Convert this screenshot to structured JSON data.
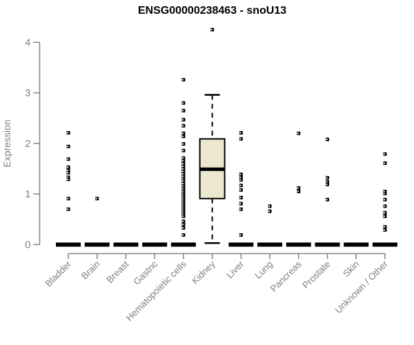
{
  "header": {
    "title": "ENSG00000238463 - snoU13"
  },
  "chart_data": {
    "type": "boxplot",
    "title": "ENSG00000238463 - snoU13",
    "xlabel": "",
    "ylabel": "Expression",
    "ylim": [
      0,
      4.3
    ],
    "yticks": [
      0,
      1,
      2,
      3,
      4
    ],
    "grid": false,
    "legend": "none",
    "colors": {
      "background": "#ffffff",
      "axis": "#808080",
      "tick_label": "#808080",
      "title": "#000000",
      "box_fill": "#ece8cf",
      "box_stroke": "#000000",
      "median": "#000000",
      "whisker": "#000000",
      "point": "#000000",
      "zero_bar": "#000000"
    },
    "categories": [
      "Bladder",
      "Brain",
      "Breast",
      "Gastric",
      "Hematopoietic cells",
      "Kidney",
      "Liver",
      "Lung",
      "Pancreas",
      "Prostate",
      "Skin",
      "Unknown / Other"
    ],
    "series": [
      {
        "category": "Bladder",
        "box": {
          "whisker_low": 0,
          "q1": 0,
          "median": 0,
          "q3": 0,
          "whisker_high": 0
        },
        "points": [
          2.21,
          1.94,
          1.69,
          1.53,
          1.47,
          1.42,
          1.33,
          1.29,
          0.91,
          0.7
        ]
      },
      {
        "category": "Brain",
        "box": {
          "whisker_low": 0,
          "q1": 0,
          "median": 0,
          "q3": 0,
          "whisker_high": 0
        },
        "points": [
          0.91
        ]
      },
      {
        "category": "Breast",
        "box": {
          "whisker_low": 0,
          "q1": 0,
          "median": 0,
          "q3": 0,
          "whisker_high": 0
        },
        "points": []
      },
      {
        "category": "Gastric",
        "box": {
          "whisker_low": 0,
          "q1": 0,
          "median": 0,
          "q3": 0,
          "whisker_high": 0
        },
        "points": []
      },
      {
        "category": "Hematopoietic cells",
        "box": {
          "whisker_low": 0,
          "q1": 0,
          "median": 0,
          "q3": 0,
          "whisker_high": 0
        },
        "points": [
          3.26,
          2.8,
          2.65,
          2.47,
          2.35,
          2.2,
          2.14,
          1.99,
          1.86,
          1.71,
          1.66,
          1.6,
          1.55,
          1.5,
          1.45,
          1.4,
          1.35,
          1.3,
          1.26,
          1.21,
          1.16,
          1.12,
          1.08,
          1.04,
          1.0,
          0.96,
          0.92,
          0.88,
          0.84,
          0.8,
          0.76,
          0.72,
          0.68,
          0.64,
          0.6,
          0.56,
          0.46,
          0.4,
          0.33,
          0.19
        ]
      },
      {
        "category": "Kidney",
        "box": {
          "whisker_low": 0.03,
          "q1": 0.91,
          "median": 1.49,
          "q3": 2.09,
          "whisker_high": 2.96
        },
        "points": [
          4.25
        ]
      },
      {
        "category": "Liver",
        "box": {
          "whisker_low": 0,
          "q1": 0,
          "median": 0,
          "q3": 0,
          "whisker_high": 0
        },
        "points": [
          2.21,
          2.09,
          1.39,
          1.33,
          1.28,
          1.17,
          1.08,
          0.93,
          0.81,
          0.7,
          0.19
        ]
      },
      {
        "category": "Lung",
        "box": {
          "whisker_low": 0,
          "q1": 0,
          "median": 0,
          "q3": 0,
          "whisker_high": 0
        },
        "points": [
          0.76,
          0.66
        ]
      },
      {
        "category": "Pancreas",
        "box": {
          "whisker_low": 0,
          "q1": 0,
          "median": 0,
          "q3": 0,
          "whisker_high": 0
        },
        "points": [
          2.2,
          1.12,
          1.05
        ]
      },
      {
        "category": "Prostate",
        "box": {
          "whisker_low": 0,
          "q1": 0,
          "median": 0,
          "q3": 0,
          "whisker_high": 0
        },
        "points": [
          2.08,
          1.32,
          1.24,
          1.19,
          0.89
        ]
      },
      {
        "category": "Skin",
        "box": {
          "whisker_low": 0,
          "q1": 0,
          "median": 0,
          "q3": 0,
          "whisker_high": 0
        },
        "points": []
      },
      {
        "category": "Unknown / Other",
        "box": {
          "whisker_low": 0,
          "q1": 0,
          "median": 0,
          "q3": 0,
          "whisker_high": 0
        },
        "points": [
          1.79,
          1.61,
          1.05,
          1.01,
          0.89,
          0.76,
          0.63,
          0.56,
          0.35,
          0.29
        ]
      }
    ]
  }
}
